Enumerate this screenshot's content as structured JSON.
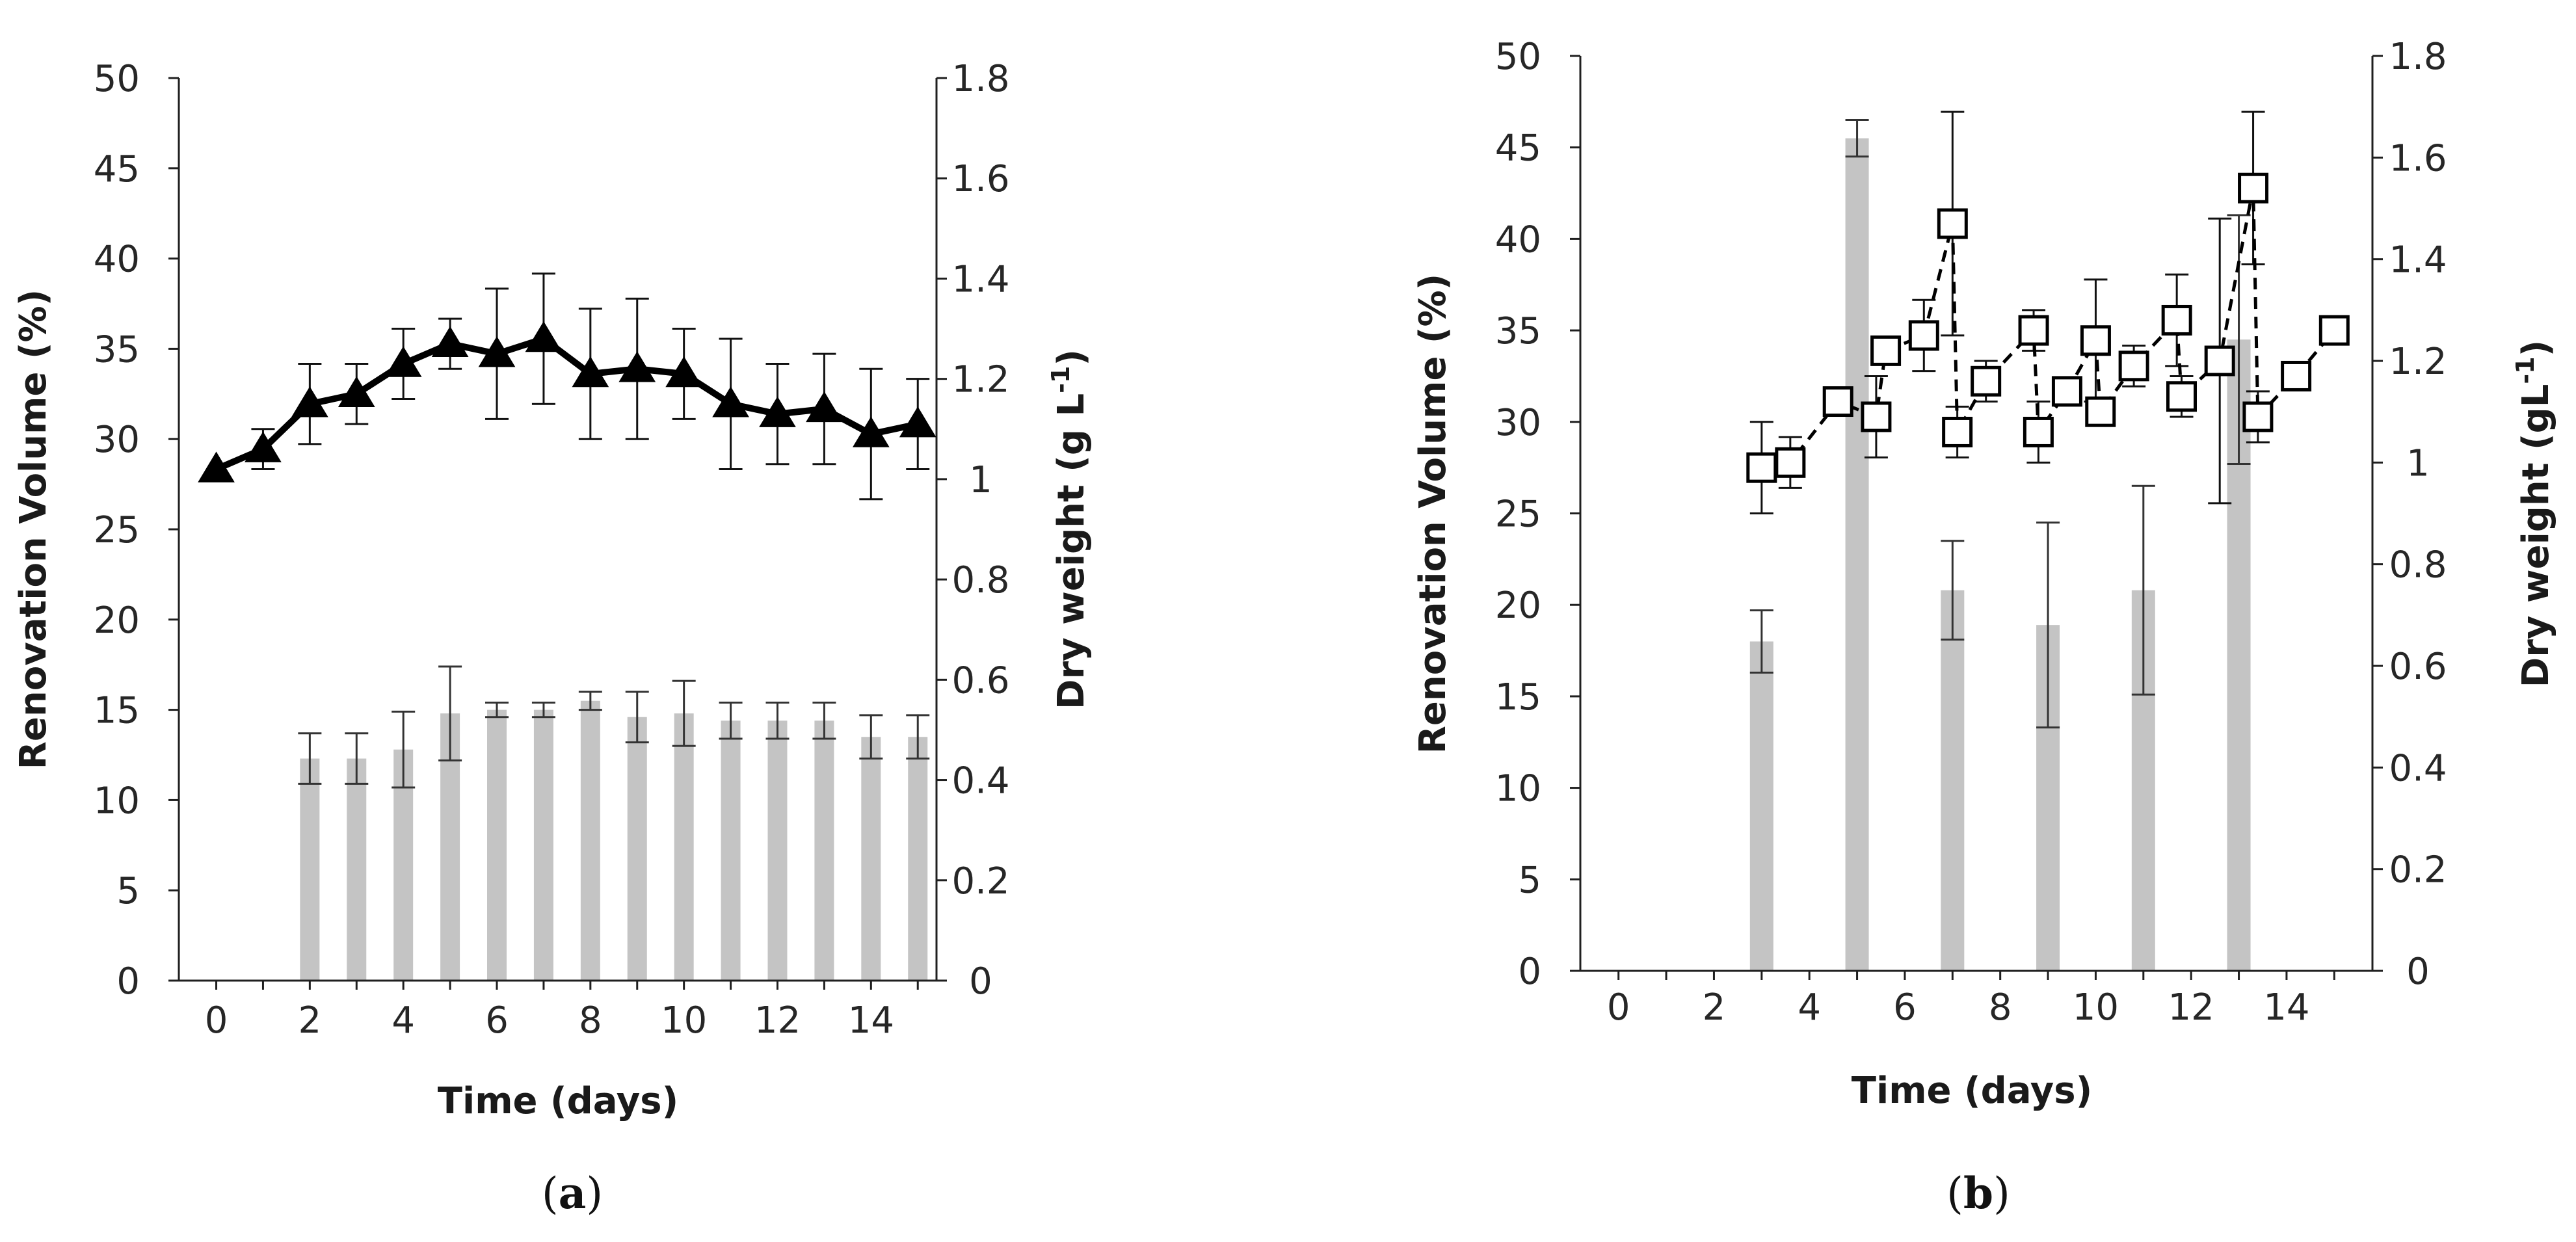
{
  "chart_data": [
    {
      "panel": "a",
      "type": "bar+line",
      "title": "",
      "caption": {
        "open": "(",
        "letter": "a",
        "close": ")"
      },
      "xlabel": "Time (days)",
      "ylabel_left": "Renovation Volume (%)",
      "ylabel_right": "Dry weight (g L",
      "ylabel_right_sup": "-1",
      "ylabel_right_close": ")",
      "xlim": [
        -0.8,
        15.4
      ],
      "xticks": [
        "0",
        "2",
        "4",
        "6",
        "8",
        "10",
        "12",
        "14"
      ],
      "ylim_left": [
        0,
        50
      ],
      "yticks_left": [
        "0",
        "5",
        "10",
        "15",
        "20",
        "25",
        "30",
        "35",
        "40",
        "45",
        "50"
      ],
      "ylim_right": [
        0,
        1.8
      ],
      "yticks_right": [
        "0",
        "0.2",
        "0.4",
        "0.6",
        "0.8",
        "1",
        "1.2",
        "1.4",
        "1.6",
        "1.8"
      ],
      "bars": {
        "name": "Renovation volume",
        "axis": "left",
        "color": "#c4c4c4",
        "x": [
          2,
          3,
          4,
          5,
          6,
          7,
          8,
          9,
          10,
          11,
          12,
          13,
          14,
          15
        ],
        "values": [
          12.3,
          12.3,
          12.8,
          14.8,
          15.0,
          15.0,
          15.5,
          14.6,
          14.8,
          14.4,
          14.4,
          14.4,
          13.5,
          13.5
        ],
        "err": [
          1.4,
          1.4,
          2.1,
          2.6,
          0.4,
          0.4,
          0.5,
          1.4,
          1.8,
          1.0,
          1.0,
          1.0,
          1.2,
          1.2
        ]
      },
      "series": [
        {
          "name": "Dry weight",
          "axis": "right",
          "marker": "triangle",
          "line": "solid",
          "color": "#000000",
          "x": [
            0,
            1,
            2,
            3,
            4,
            5,
            6,
            7,
            8,
            9,
            10,
            11,
            12,
            13,
            14,
            15
          ],
          "values": [
            1.02,
            1.06,
            1.15,
            1.17,
            1.23,
            1.27,
            1.25,
            1.28,
            1.21,
            1.22,
            1.21,
            1.15,
            1.13,
            1.14,
            1.09,
            1.11
          ],
          "err": [
            0,
            0.04,
            0.08,
            0.06,
            0.07,
            0.05,
            0.13,
            0.13,
            0.13,
            0.14,
            0.09,
            0.13,
            0.1,
            0.11,
            0.13,
            0.09
          ]
        }
      ]
    },
    {
      "panel": "b",
      "type": "bar+line",
      "title": "",
      "caption": {
        "open": "(",
        "letter": "b",
        "close": ")"
      },
      "xlabel": "Time (days)",
      "ylabel_left": "Renovation Volume (%)",
      "ylabel_right": "Dry weight (gL",
      "ylabel_right_sup": "-1",
      "ylabel_right_close": ")",
      "xlim": [
        -0.8,
        15.8
      ],
      "xticks": [
        "0",
        "2",
        "4",
        "6",
        "8",
        "10",
        "12",
        "14"
      ],
      "ylim_left": [
        0,
        50
      ],
      "yticks_left": [
        "0",
        "5",
        "10",
        "15",
        "20",
        "25",
        "30",
        "35",
        "40",
        "45",
        "50"
      ],
      "ylim_right": [
        0,
        1.8
      ],
      "yticks_right": [
        "0",
        "0.2",
        "0.4",
        "0.6",
        "0.8",
        "1",
        "1.2",
        "1.4",
        "1.6",
        "1.8"
      ],
      "bars": {
        "name": "Renovation volume",
        "axis": "left",
        "color": "#c4c4c4",
        "x": [
          3,
          5,
          7,
          9,
          11,
          13
        ],
        "values": [
          18.0,
          45.5,
          20.8,
          18.9,
          20.8,
          34.5
        ],
        "err": [
          1.7,
          1.0,
          2.7,
          5.6,
          5.7,
          6.8
        ]
      },
      "series": [
        {
          "name": "Dry weight",
          "axis": "right",
          "marker": "square-open",
          "line": "dashed",
          "color": "#000000",
          "x": [
            3,
            3.6,
            4.6,
            5.4,
            5.6,
            6.4,
            7.0,
            7.1,
            7.7,
            8.7,
            8.8,
            9.4,
            10.0,
            10.1,
            10.8,
            11.7,
            11.8,
            12.6,
            13.3,
            13.4,
            14.2,
            15.0
          ],
          "values": [
            0.99,
            1.0,
            1.12,
            1.09,
            1.22,
            1.25,
            1.47,
            1.06,
            1.16,
            1.26,
            1.06,
            1.14,
            1.24,
            1.1,
            1.19,
            1.28,
            1.13,
            1.2,
            1.54,
            1.09,
            1.17,
            1.26
          ],
          "err": [
            0.09,
            0.05,
            0,
            0.08,
            0,
            0.07,
            0.22,
            0.05,
            0.04,
            0.04,
            0.06,
            0,
            0.12,
            0,
            0.04,
            0.09,
            0.04,
            0.28,
            0.15,
            0.05,
            0,
            0
          ]
        }
      ]
    }
  ]
}
